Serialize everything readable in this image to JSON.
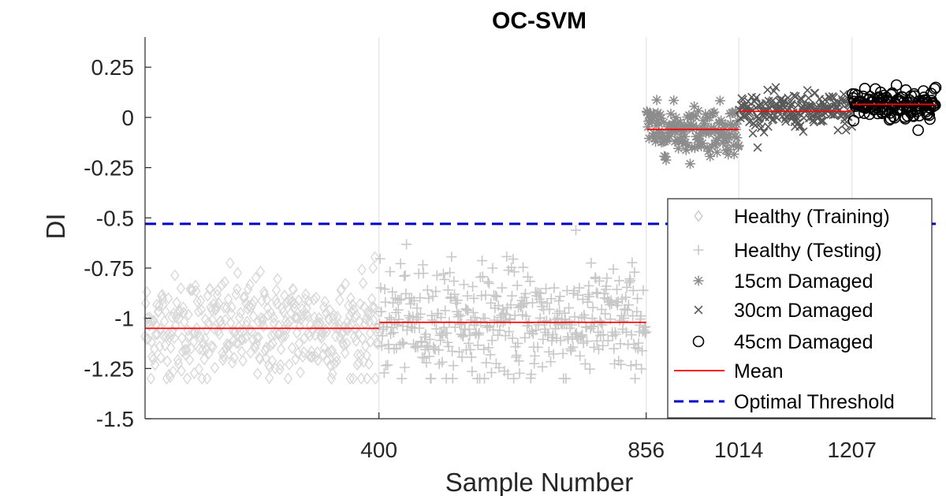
{
  "chart_data": {
    "type": "scatter",
    "title": "OC-SVM",
    "xlabel": "Sample Number",
    "ylabel": "DI",
    "xlim": [
      1,
      1350
    ],
    "ylim": [
      -1.5,
      0.4
    ],
    "xticks": [
      400,
      856,
      1014,
      1207
    ],
    "xtick_labels": [
      "400",
      "856",
      "1014",
      "1207"
    ],
    "yticks": [
      0.25,
      0,
      -0.25,
      -0.5,
      -0.75,
      -1,
      -1.25,
      -1.5
    ],
    "ytick_labels": [
      "0.25",
      "0",
      "-0.25",
      "-0.5",
      "-0.75",
      "-1",
      "-1.25",
      "-1.5"
    ],
    "vertical_grid": [
      400,
      856,
      1014,
      1207
    ],
    "legend_position": "right",
    "series": [
      {
        "name": "Healthy (Training)",
        "marker": "diamond",
        "color": "#d9d9d9",
        "x_range": [
          1,
          400
        ],
        "mean": -1.05,
        "spread": [
          -1.3,
          -0.52
        ]
      },
      {
        "name": "Healthy (Testing)",
        "marker": "plus",
        "color": "#c8c8c8",
        "x_range": [
          401,
          856
        ],
        "mean": -1.02,
        "spread": [
          -1.3,
          -0.48
        ]
      },
      {
        "name": "15cm Damaged",
        "marker": "asterisk",
        "color": "#8c8c8c",
        "x_range": [
          857,
          1014
        ],
        "mean": -0.06,
        "spread": [
          -0.3,
          0.09
        ]
      },
      {
        "name": "30cm Damaged",
        "marker": "x",
        "color": "#595959",
        "x_range": [
          1015,
          1207
        ],
        "mean": 0.03,
        "spread": [
          -0.15,
          0.15
        ]
      },
      {
        "name": "45cm Damaged",
        "marker": "circle",
        "color": "#000000",
        "x_range": [
          1208,
          1350
        ],
        "mean": 0.065,
        "spread": [
          -0.07,
          0.22
        ]
      }
    ],
    "mean_lines": [
      {
        "x": [
          1,
          400
        ],
        "y": -1.05
      },
      {
        "x": [
          401,
          856
        ],
        "y": -1.02
      },
      {
        "x": [
          857,
          1014
        ],
        "y": -0.06
      },
      {
        "x": [
          1015,
          1207
        ],
        "y": 0.03
      },
      {
        "x": [
          1208,
          1350
        ],
        "y": 0.065
      }
    ],
    "threshold": {
      "name": "Optimal Threshold",
      "y": -0.53,
      "color": "#0000cc"
    },
    "mean_label": "Mean",
    "mean_color": "#ff0000"
  }
}
